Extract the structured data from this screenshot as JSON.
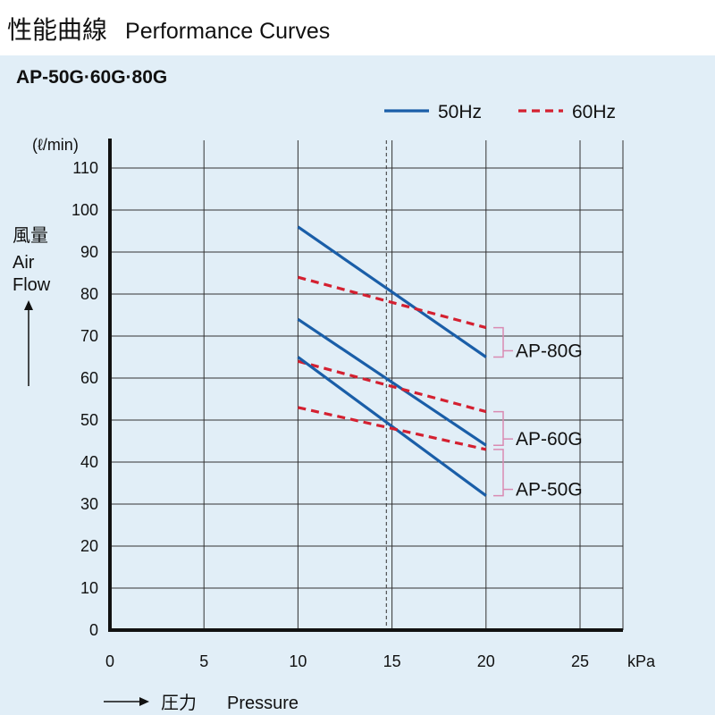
{
  "header": {
    "title_jp": "性能曲線",
    "title_en": "Performance Curves"
  },
  "chart_data": {
    "type": "line",
    "title": "AP-50G·60G·80G",
    "xlabel": "→ 圧力  Pressure",
    "xlabel_jp": "圧力",
    "xlabel_en": "Pressure",
    "xunit": "kPa",
    "ylabel_jp": "風量",
    "ylabel_en1": "Air",
    "ylabel_en2": "Flow",
    "yunit": "(ℓ/min)",
    "xlim": [
      0,
      27.3
    ],
    "ylim": [
      0,
      110
    ],
    "x_ticks": [
      0,
      5,
      10,
      15,
      20,
      25
    ],
    "y_ticks": [
      0,
      10,
      20,
      30,
      40,
      50,
      60,
      70,
      80,
      90,
      100,
      110
    ],
    "grid": true,
    "reference_line_x": 14.7,
    "legend": {
      "position": "top-right",
      "entries": [
        {
          "label": "50Hz",
          "color": "#1a5ea8",
          "style": "solid"
        },
        {
          "label": "60Hz",
          "color": "#d42030",
          "style": "dashed"
        }
      ]
    },
    "series": [
      {
        "model": "AP-80G",
        "freq": "50Hz",
        "x": [
          10,
          20
        ],
        "y": [
          96,
          65
        ]
      },
      {
        "model": "AP-80G",
        "freq": "60Hz",
        "x": [
          10,
          20
        ],
        "y": [
          84,
          72
        ]
      },
      {
        "model": "AP-60G",
        "freq": "50Hz",
        "x": [
          10,
          20
        ],
        "y": [
          74,
          44
        ]
      },
      {
        "model": "AP-60G",
        "freq": "60Hz",
        "x": [
          10,
          20
        ],
        "y": [
          64,
          52
        ]
      },
      {
        "model": "AP-50G",
        "freq": "50Hz",
        "x": [
          10,
          20
        ],
        "y": [
          65,
          32
        ]
      },
      {
        "model": "AP-50G",
        "freq": "60Hz",
        "x": [
          10,
          20
        ],
        "y": [
          53,
          43
        ]
      }
    ],
    "series_labels": [
      {
        "label": "AP-80G",
        "bracket_y": [
          72,
          65
        ],
        "label_y": 66.5
      },
      {
        "label": "AP-60G",
        "bracket_y": [
          52,
          44
        ],
        "label_y": 45.5
      },
      {
        "label": "AP-50G",
        "bracket_y": [
          43,
          32
        ],
        "label_y": 33.5
      }
    ]
  },
  "colors": {
    "panel_bg": "#e1eef7",
    "line_50hz": "#1a5ea8",
    "line_60hz": "#d42030",
    "bracket": "#d98ab2",
    "axis": "#111111",
    "grid": "#333333"
  }
}
